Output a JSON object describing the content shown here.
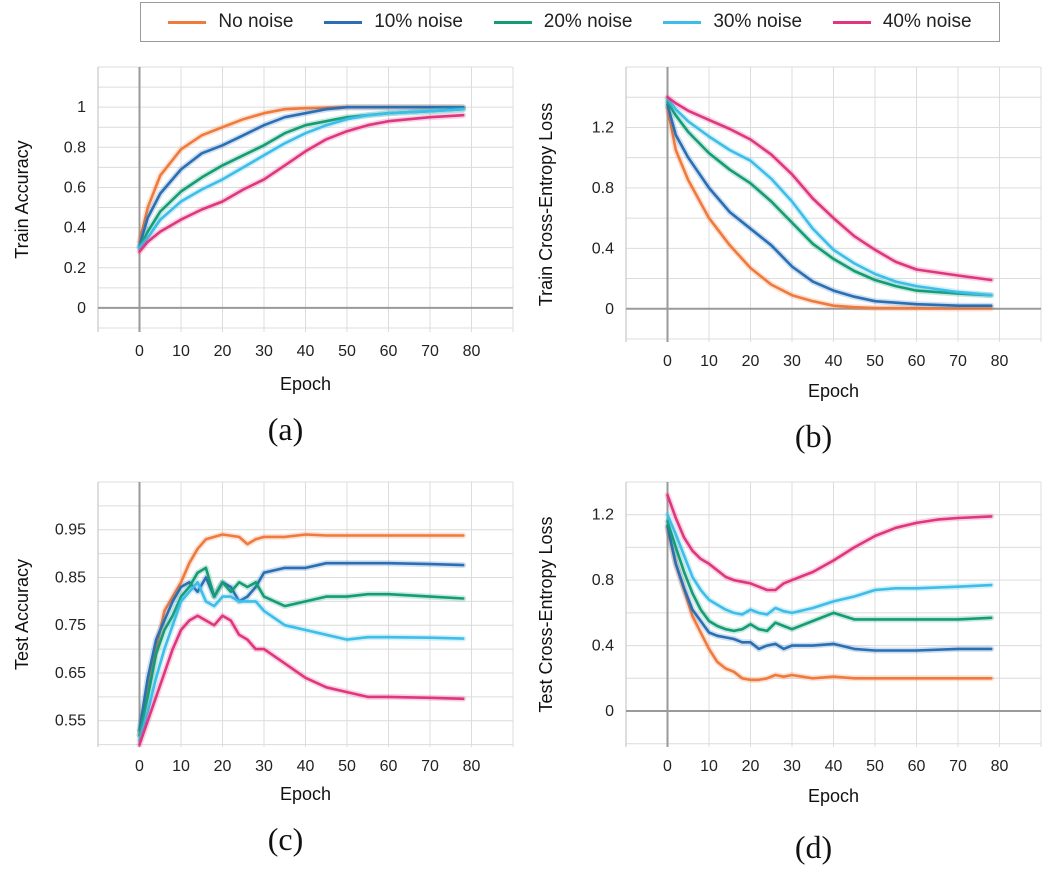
{
  "colors": {
    "No noise": "#f07a3d",
    "10% noise": "#2a6fb4",
    "20% noise": "#149c74",
    "30% noise": "#3dbde8",
    "40% noise": "#e0367f"
  },
  "legend": {
    "items": [
      "No noise",
      "10% noise",
      "20% noise",
      "30% noise",
      "40% noise"
    ]
  },
  "chart_data": [
    {
      "type": "line",
      "caption": "(a)",
      "xlabel": "Epoch",
      "ylabel": "Train Accuracy",
      "xlim": [
        -10,
        90
      ],
      "ylim": [
        -0.12,
        1.2
      ],
      "xticks": [
        0,
        10,
        20,
        30,
        40,
        50,
        60,
        70,
        80
      ],
      "yticks": [
        0,
        0.2,
        0.4,
        0.6,
        0.8,
        1
      ],
      "ytick_labels": [
        "0",
        "0.2",
        "0.4",
        "0.6",
        "0.8",
        "1"
      ],
      "series": [
        {
          "name": "No noise",
          "x": [
            0,
            2,
            5,
            10,
            15,
            20,
            25,
            30,
            35,
            40,
            50,
            60,
            70,
            78
          ],
          "y": [
            0.33,
            0.5,
            0.66,
            0.79,
            0.86,
            0.9,
            0.94,
            0.97,
            0.99,
            0.995,
            1,
            1,
            1,
            1
          ]
        },
        {
          "name": "10% noise",
          "x": [
            0,
            2,
            5,
            10,
            15,
            20,
            25,
            30,
            35,
            40,
            45,
            50,
            60,
            70,
            78
          ],
          "y": [
            0.31,
            0.45,
            0.57,
            0.69,
            0.77,
            0.81,
            0.86,
            0.91,
            0.95,
            0.97,
            0.99,
            1,
            1,
            1,
            1
          ]
        },
        {
          "name": "20% noise",
          "x": [
            0,
            2,
            5,
            10,
            15,
            20,
            25,
            30,
            35,
            40,
            45,
            50,
            55,
            60,
            70,
            78
          ],
          "y": [
            0.3,
            0.38,
            0.48,
            0.58,
            0.65,
            0.71,
            0.76,
            0.81,
            0.87,
            0.91,
            0.93,
            0.95,
            0.96,
            0.97,
            0.98,
            0.99
          ]
        },
        {
          "name": "30% noise",
          "x": [
            0,
            2,
            5,
            10,
            15,
            20,
            25,
            30,
            35,
            40,
            45,
            50,
            55,
            60,
            70,
            78
          ],
          "y": [
            0.3,
            0.35,
            0.44,
            0.53,
            0.59,
            0.64,
            0.7,
            0.76,
            0.82,
            0.87,
            0.91,
            0.94,
            0.96,
            0.97,
            0.98,
            0.99
          ]
        },
        {
          "name": "40% noise",
          "x": [
            0,
            2,
            5,
            10,
            15,
            20,
            25,
            30,
            35,
            40,
            45,
            50,
            55,
            60,
            70,
            78
          ],
          "y": [
            0.28,
            0.33,
            0.38,
            0.44,
            0.49,
            0.53,
            0.59,
            0.64,
            0.71,
            0.78,
            0.84,
            0.88,
            0.91,
            0.93,
            0.95,
            0.96
          ]
        }
      ]
    },
    {
      "type": "line",
      "caption": "(b)",
      "xlabel": "Epoch",
      "ylabel": "Train Cross-Entropy Loss",
      "xlim": [
        -10,
        90
      ],
      "ylim": [
        -0.22,
        1.6
      ],
      "xticks": [
        0,
        10,
        20,
        30,
        40,
        50,
        60,
        70,
        80
      ],
      "yticks": [
        0,
        0.4,
        0.8,
        1.2
      ],
      "ytick_labels": [
        "0",
        "0.4",
        "0.8",
        "1.2"
      ],
      "series": [
        {
          "name": "No noise",
          "x": [
            0,
            2,
            5,
            10,
            15,
            20,
            25,
            30,
            35,
            40,
            45,
            50,
            60,
            70,
            78
          ],
          "y": [
            1.33,
            1.05,
            0.85,
            0.6,
            0.42,
            0.27,
            0.16,
            0.09,
            0.05,
            0.02,
            0.01,
            0.005,
            0.003,
            0.002,
            0.002
          ]
        },
        {
          "name": "10% noise",
          "x": [
            0,
            2,
            5,
            10,
            15,
            20,
            25,
            30,
            35,
            40,
            45,
            50,
            55,
            60,
            70,
            78
          ],
          "y": [
            1.35,
            1.15,
            1.0,
            0.8,
            0.64,
            0.53,
            0.42,
            0.28,
            0.18,
            0.12,
            0.08,
            0.05,
            0.04,
            0.03,
            0.02,
            0.02
          ]
        },
        {
          "name": "20% noise",
          "x": [
            0,
            2,
            5,
            10,
            15,
            20,
            25,
            30,
            35,
            40,
            45,
            50,
            55,
            60,
            70,
            78
          ],
          "y": [
            1.37,
            1.28,
            1.17,
            1.03,
            0.92,
            0.83,
            0.71,
            0.57,
            0.43,
            0.33,
            0.25,
            0.19,
            0.15,
            0.12,
            0.1,
            0.09
          ]
        },
        {
          "name": "30% noise",
          "x": [
            0,
            2,
            5,
            10,
            15,
            20,
            25,
            30,
            35,
            40,
            45,
            50,
            55,
            60,
            70,
            78
          ],
          "y": [
            1.39,
            1.32,
            1.24,
            1.14,
            1.05,
            0.98,
            0.86,
            0.71,
            0.53,
            0.39,
            0.3,
            0.23,
            0.18,
            0.15,
            0.11,
            0.09
          ]
        },
        {
          "name": "40% noise",
          "x": [
            0,
            2,
            5,
            10,
            15,
            20,
            25,
            30,
            35,
            40,
            45,
            50,
            55,
            60,
            70,
            78
          ],
          "y": [
            1.4,
            1.36,
            1.31,
            1.25,
            1.19,
            1.12,
            1.02,
            0.89,
            0.73,
            0.6,
            0.48,
            0.39,
            0.31,
            0.26,
            0.22,
            0.19
          ]
        }
      ]
    },
    {
      "type": "line",
      "caption": "(c)",
      "xlabel": "Epoch",
      "ylabel": "Test Accuracy",
      "xlim": [
        -10,
        90
      ],
      "ylim": [
        0.495,
        1.05
      ],
      "xticks": [
        0,
        10,
        20,
        30,
        40,
        50,
        60,
        70,
        80
      ],
      "yticks": [
        0.55,
        0.65,
        0.75,
        0.85,
        0.95
      ],
      "ytick_labels": [
        "0.55",
        "0.65",
        "0.75",
        "0.85",
        "0.95"
      ],
      "series": [
        {
          "name": "No noise",
          "x": [
            0,
            2,
            4,
            6,
            8,
            10,
            12,
            14,
            16,
            18,
            20,
            24,
            26,
            28,
            30,
            35,
            40,
            45,
            50,
            60,
            70,
            78
          ],
          "y": [
            0.52,
            0.62,
            0.7,
            0.78,
            0.81,
            0.84,
            0.88,
            0.91,
            0.93,
            0.935,
            0.94,
            0.935,
            0.92,
            0.93,
            0.935,
            0.935,
            0.94,
            0.938,
            0.938,
            0.938,
            0.938,
            0.938
          ]
        },
        {
          "name": "10% noise",
          "x": [
            0,
            2,
            4,
            6,
            8,
            10,
            12,
            14,
            16,
            18,
            20,
            22,
            24,
            26,
            28,
            30,
            35,
            40,
            45,
            50,
            55,
            60,
            70,
            78
          ],
          "y": [
            0.53,
            0.64,
            0.72,
            0.76,
            0.8,
            0.83,
            0.84,
            0.82,
            0.85,
            0.81,
            0.84,
            0.83,
            0.8,
            0.81,
            0.83,
            0.86,
            0.87,
            0.87,
            0.88,
            0.88,
            0.88,
            0.88,
            0.878,
            0.876
          ]
        },
        {
          "name": "20% noise",
          "x": [
            0,
            2,
            4,
            6,
            8,
            10,
            12,
            14,
            16,
            18,
            20,
            22,
            24,
            26,
            28,
            30,
            35,
            40,
            45,
            50,
            55,
            60,
            70,
            78
          ],
          "y": [
            0.52,
            0.6,
            0.69,
            0.74,
            0.77,
            0.81,
            0.83,
            0.86,
            0.87,
            0.81,
            0.84,
            0.82,
            0.84,
            0.83,
            0.84,
            0.81,
            0.79,
            0.8,
            0.81,
            0.81,
            0.815,
            0.815,
            0.81,
            0.806
          ]
        },
        {
          "name": "30% noise",
          "x": [
            0,
            2,
            4,
            6,
            8,
            10,
            12,
            14,
            16,
            18,
            20,
            22,
            24,
            26,
            28,
            30,
            35,
            40,
            45,
            50,
            55,
            60,
            70,
            78
          ],
          "y": [
            0.51,
            0.57,
            0.64,
            0.7,
            0.75,
            0.8,
            0.82,
            0.84,
            0.8,
            0.79,
            0.81,
            0.81,
            0.8,
            0.8,
            0.8,
            0.78,
            0.75,
            0.74,
            0.73,
            0.72,
            0.725,
            0.725,
            0.724,
            0.722
          ]
        },
        {
          "name": "40% noise",
          "x": [
            0,
            2,
            4,
            6,
            8,
            10,
            12,
            14,
            16,
            18,
            20,
            22,
            24,
            26,
            28,
            30,
            35,
            40,
            45,
            50,
            55,
            60,
            70,
            78
          ],
          "y": [
            0.5,
            0.55,
            0.6,
            0.65,
            0.7,
            0.74,
            0.76,
            0.77,
            0.76,
            0.75,
            0.77,
            0.76,
            0.73,
            0.72,
            0.7,
            0.7,
            0.67,
            0.64,
            0.62,
            0.61,
            0.6,
            0.6,
            0.598,
            0.596
          ]
        }
      ]
    },
    {
      "type": "line",
      "caption": "(d)",
      "xlabel": "Epoch",
      "ylabel": "Test Cross-Entropy Loss",
      "xlim": [
        -10,
        90
      ],
      "ylim": [
        -0.22,
        1.4
      ],
      "xticks": [
        0,
        10,
        20,
        30,
        40,
        50,
        60,
        70,
        80
      ],
      "yticks": [
        0,
        0.4,
        0.8,
        1.2
      ],
      "ytick_labels": [
        "0",
        "0.4",
        "0.8",
        "1.2"
      ],
      "series": [
        {
          "name": "No noise",
          "x": [
            0,
            2,
            4,
            6,
            8,
            10,
            12,
            14,
            16,
            18,
            20,
            22,
            24,
            26,
            28,
            30,
            35,
            40,
            45,
            50,
            60,
            70,
            78
          ],
          "y": [
            1.12,
            0.9,
            0.74,
            0.58,
            0.48,
            0.38,
            0.3,
            0.26,
            0.24,
            0.2,
            0.19,
            0.19,
            0.2,
            0.22,
            0.21,
            0.22,
            0.2,
            0.21,
            0.2,
            0.2,
            0.2,
            0.2,
            0.2
          ]
        },
        {
          "name": "10% noise",
          "x": [
            0,
            2,
            4,
            6,
            8,
            10,
            12,
            14,
            16,
            18,
            20,
            22,
            24,
            26,
            28,
            30,
            35,
            40,
            45,
            50,
            55,
            60,
            70,
            78
          ],
          "y": [
            1.13,
            0.9,
            0.75,
            0.62,
            0.55,
            0.48,
            0.46,
            0.45,
            0.44,
            0.42,
            0.42,
            0.38,
            0.4,
            0.41,
            0.38,
            0.4,
            0.4,
            0.41,
            0.38,
            0.37,
            0.37,
            0.37,
            0.38,
            0.38
          ]
        },
        {
          "name": "20% noise",
          "x": [
            0,
            2,
            4,
            6,
            8,
            10,
            12,
            14,
            16,
            18,
            20,
            22,
            24,
            26,
            28,
            30,
            35,
            40,
            45,
            50,
            55,
            60,
            70,
            78
          ],
          "y": [
            1.16,
            1.0,
            0.85,
            0.72,
            0.62,
            0.55,
            0.52,
            0.5,
            0.49,
            0.5,
            0.53,
            0.5,
            0.49,
            0.54,
            0.52,
            0.5,
            0.55,
            0.6,
            0.56,
            0.56,
            0.56,
            0.56,
            0.56,
            0.57
          ]
        },
        {
          "name": "30% noise",
          "x": [
            0,
            2,
            4,
            6,
            8,
            10,
            12,
            14,
            16,
            18,
            20,
            22,
            24,
            26,
            28,
            30,
            35,
            40,
            45,
            50,
            55,
            60,
            70,
            78
          ],
          "y": [
            1.2,
            1.08,
            0.95,
            0.82,
            0.74,
            0.68,
            0.65,
            0.62,
            0.6,
            0.59,
            0.62,
            0.6,
            0.59,
            0.63,
            0.61,
            0.6,
            0.63,
            0.67,
            0.7,
            0.74,
            0.75,
            0.75,
            0.76,
            0.77
          ]
        },
        {
          "name": "40% noise",
          "x": [
            0,
            2,
            4,
            6,
            8,
            10,
            12,
            14,
            16,
            18,
            20,
            22,
            24,
            26,
            28,
            30,
            35,
            40,
            45,
            50,
            55,
            60,
            65,
            70,
            78
          ],
          "y": [
            1.32,
            1.18,
            1.06,
            0.98,
            0.93,
            0.9,
            0.86,
            0.82,
            0.8,
            0.79,
            0.78,
            0.76,
            0.74,
            0.74,
            0.78,
            0.8,
            0.85,
            0.92,
            1.0,
            1.07,
            1.12,
            1.15,
            1.17,
            1.18,
            1.19
          ]
        }
      ]
    }
  ]
}
